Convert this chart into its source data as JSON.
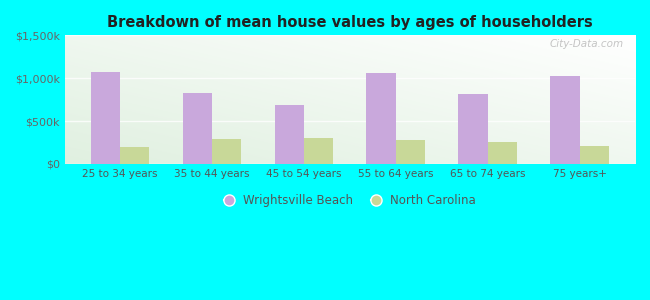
{
  "title": "Breakdown of mean house values by ages of householders",
  "categories": [
    "25 to 34 years",
    "35 to 44 years",
    "45 to 54 years",
    "55 to 64 years",
    "65 to 74 years",
    "75 years+"
  ],
  "wrightsville_beach": [
    1075000,
    825000,
    690000,
    1055000,
    820000,
    1025000
  ],
  "north_carolina": [
    195000,
    290000,
    300000,
    275000,
    250000,
    205000
  ],
  "wrightsville_color": "#c9a8dc",
  "nc_color": "#c8d898",
  "bg_color": "#00ffff",
  "ylim": [
    0,
    1500000
  ],
  "yticks": [
    0,
    500000,
    1000000,
    1500000
  ],
  "ytick_labels": [
    "$0",
    "$500k",
    "$1,000k",
    "$1,500k"
  ],
  "legend_wrightsville": "Wrightsville Beach",
  "legend_nc": "North Carolina",
  "watermark": "City-Data.com"
}
